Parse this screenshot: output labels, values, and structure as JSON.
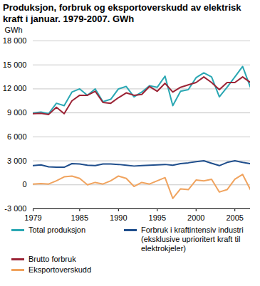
{
  "chart_data": {
    "type": "line",
    "title": "Produksjon, forbruk og eksportoverskudd av elektrisk kraft i januar. 1979-2007. GWh",
    "y_label": "GWh",
    "x": [
      1979,
      1980,
      1981,
      1982,
      1983,
      1984,
      1985,
      1986,
      1987,
      1988,
      1989,
      1990,
      1991,
      1992,
      1993,
      1994,
      1995,
      1996,
      1997,
      1998,
      1999,
      2000,
      2001,
      2002,
      2003,
      2004,
      2005,
      2006,
      2007
    ],
    "xlim": [
      1979,
      2007
    ],
    "xticks": [
      1979,
      1985,
      1990,
      1995,
      2000,
      2005
    ],
    "ylim": [
      -3000,
      18000
    ],
    "yticks": [
      {
        "value": -3000,
        "label": "-3 000"
      },
      0,
      {
        "value": 3000,
        "label": "3 000"
      },
      {
        "value": 6000,
        "label": "6 000"
      },
      {
        "value": 9000,
        "label": "9 000"
      },
      {
        "value": 12000,
        "label": "12 000"
      },
      {
        "value": 15000,
        "label": "15 000"
      },
      {
        "value": 18000,
        "label": "18 000"
      }
    ],
    "grid": true,
    "legend": "bottom",
    "series": [
      {
        "name": "Total produksjon",
        "color": "#2aa7b3",
        "values": [
          9000,
          9100,
          8900,
          10200,
          9900,
          11600,
          12000,
          11200,
          12000,
          10400,
          10700,
          12000,
          12300,
          11000,
          11600,
          12400,
          12200,
          13600,
          9900,
          11700,
          11900,
          13400,
          14000,
          13500,
          11000,
          12200,
          13500,
          14800,
          12200
        ]
      },
      {
        "name": "Brutto forbruk",
        "color": "#9b2335",
        "values": [
          8900,
          8950,
          8800,
          9700,
          8900,
          10500,
          11200,
          11200,
          11700,
          10300,
          10200,
          10900,
          11500,
          11200,
          11300,
          12300,
          11700,
          12700,
          11600,
          12200,
          12500,
          12800,
          13500,
          12800,
          11900,
          12800,
          12800,
          13500,
          12800
        ]
      },
      {
        "name": "Eksportoverskudd",
        "color": "#f0a35e",
        "values": [
          100,
          150,
          100,
          500,
          1000,
          1100,
          800,
          0,
          300,
          100,
          500,
          1100,
          800,
          -200,
          300,
          100,
          500,
          900,
          -1700,
          -500,
          -600,
          600,
          500,
          700,
          -900,
          -600,
          700,
          1300,
          -600
        ]
      },
      {
        "name": "Forbruk i kraftintensiv industri (eksklusive uprioritert kraft til elektrokjeler)",
        "color": "#1f4e8c",
        "values": [
          2400,
          2500,
          2250,
          2200,
          2200,
          2650,
          2600,
          2450,
          2400,
          2600,
          2600,
          2550,
          2450,
          2350,
          2400,
          2450,
          2500,
          2550,
          2450,
          2650,
          2750,
          2900,
          3000,
          2700,
          2400,
          2800,
          3000,
          2800,
          2650
        ]
      }
    ]
  }
}
